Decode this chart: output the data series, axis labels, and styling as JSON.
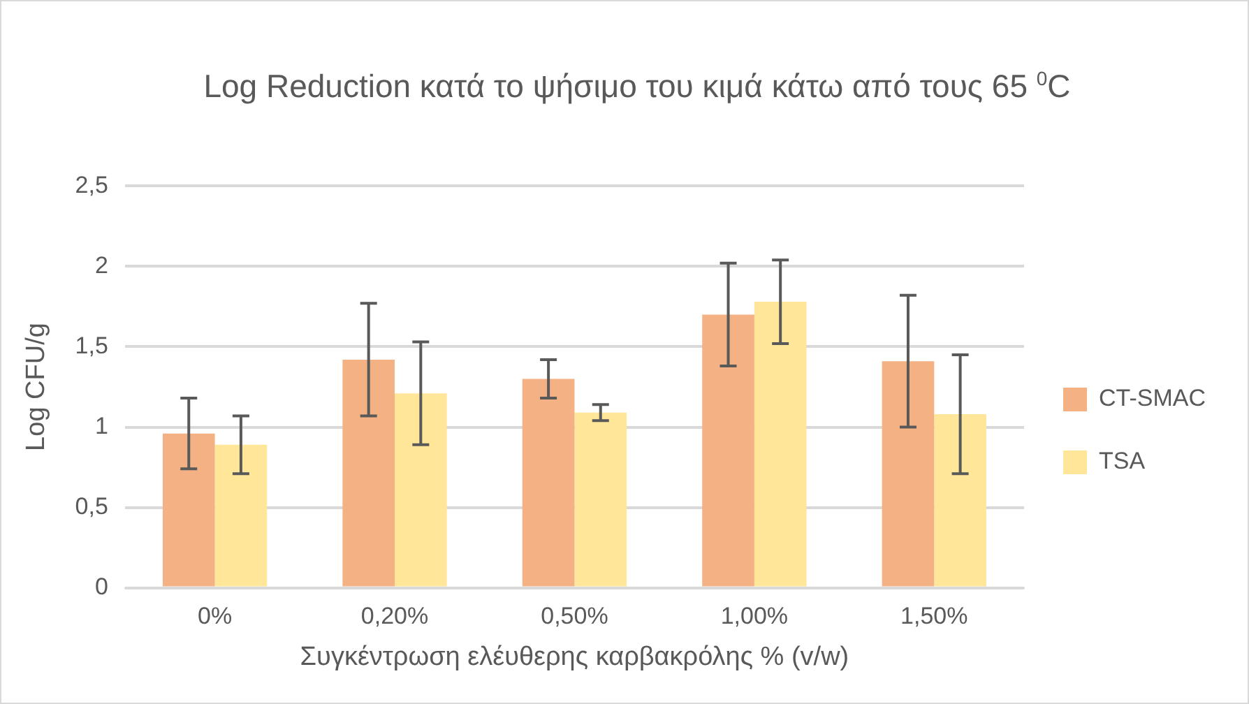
{
  "chart_data": {
    "type": "bar",
    "title": "Log Reduction κατά το ψήσιμο του κιμά κάτω από τους 65 $^{0}$C",
    "xlabel": "Συγκέντρωση ελέυθερης καρβακρόλης % (v/w)",
    "ylabel": "Log CFU/g",
    "categories": [
      "0%",
      "0,20%",
      "0,50%",
      "1,00%",
      "1,50%"
    ],
    "series": [
      {
        "name": "CT-SMAC",
        "color": "#f4b183",
        "values": [
          0.96,
          1.42,
          1.3,
          1.7,
          1.41
        ],
        "errors": [
          0.22,
          0.35,
          0.12,
          0.32,
          0.41
        ]
      },
      {
        "name": "TSA",
        "color": "#ffe699",
        "values": [
          0.89,
          1.21,
          1.09,
          1.78,
          1.08
        ],
        "errors": [
          0.18,
          0.32,
          0.05,
          0.26,
          0.37
        ]
      }
    ],
    "ylim": [
      0,
      2.5
    ],
    "yticks": [
      0,
      {
        "value": 0.5,
        "label": "0,5"
      },
      1,
      {
        "value": 1.5,
        "label": "1,5"
      },
      2,
      {
        "value": 2.5,
        "label": "2,5"
      }
    ],
    "grid": "y",
    "legend": "right"
  }
}
